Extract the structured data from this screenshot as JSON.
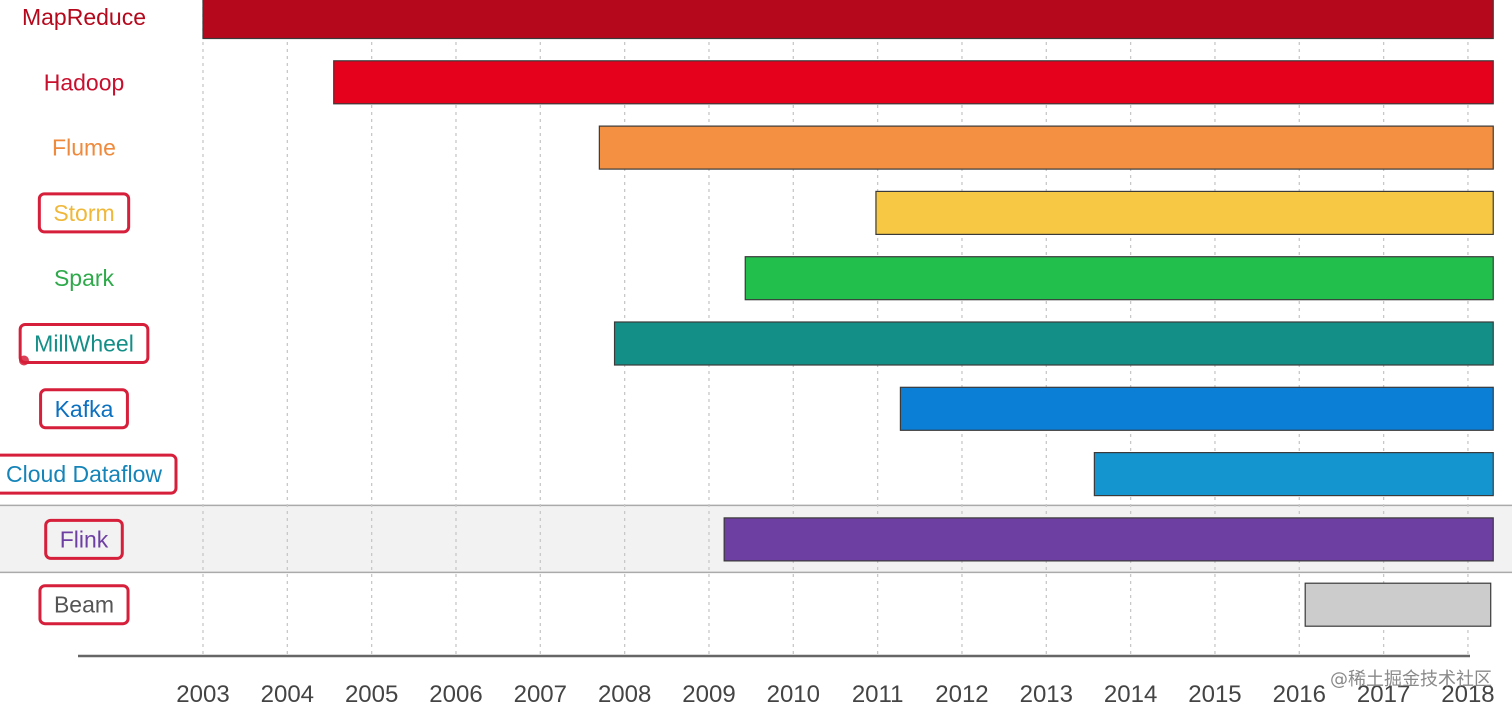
{
  "chart_data": {
    "type": "bar",
    "orientation": "horizontal",
    "title": "",
    "xlabel": "",
    "ylabel": "",
    "xlim": [
      2003,
      2018.3
    ],
    "x_ticks": [
      "2003",
      "2004",
      "2005",
      "2006",
      "2007",
      "2008",
      "2009",
      "2010",
      "2011",
      "2012",
      "2013",
      "2014",
      "2015",
      "2016",
      "2017",
      "2018"
    ],
    "grid": true,
    "series": [
      {
        "label": "MapReduce",
        "start": 2003.0,
        "end": 2018.3,
        "color": "#b5081c",
        "label_color": "#b5081c",
        "boxed": false
      },
      {
        "label": "Hadoop",
        "start": 2004.55,
        "end": 2018.3,
        "color": "#e5001b",
        "label_color": "#c8102e",
        "boxed": false
      },
      {
        "label": "Flume",
        "start": 2007.7,
        "end": 2018.3,
        "color": "#f39042",
        "label_color": "#ef8a3c",
        "boxed": false
      },
      {
        "label": "Storm",
        "start": 2010.98,
        "end": 2018.3,
        "color": "#f7c843",
        "label_color": "#f0b83a",
        "boxed": true
      },
      {
        "label": "Spark",
        "start": 2009.43,
        "end": 2018.3,
        "color": "#22bf4c",
        "label_color": "#2eaa4a",
        "boxed": false
      },
      {
        "label": "MillWheel",
        "start": 2007.88,
        "end": 2018.3,
        "color": "#138f88",
        "label_color": "#138f88",
        "boxed": true
      },
      {
        "label": "Kafka",
        "start": 2011.27,
        "end": 2018.3,
        "color": "#0b7ed6",
        "label_color": "#0b70c0",
        "boxed": true
      },
      {
        "label": "Cloud Dataflow",
        "start": 2013.57,
        "end": 2018.3,
        "color": "#1595cf",
        "label_color": "#1584b8",
        "boxed": true
      },
      {
        "label": "Flink",
        "start": 2009.18,
        "end": 2018.3,
        "color": "#6e3fa3",
        "label_color": "#6e3fa3",
        "boxed": true,
        "highlight_row": true
      },
      {
        "label": "Beam",
        "start": 2016.07,
        "end": 2018.27,
        "color": "#cccccc",
        "label_color": "#555555",
        "boxed": true
      }
    ]
  },
  "colors": {
    "label_box": "#d61f3a",
    "highlight_row_bg": "#f2f2f2",
    "grid": "#c8c8c8",
    "axis": "#666666",
    "bar_border": "#3a3a3a"
  },
  "watermark": "@稀土掘金技术社区"
}
